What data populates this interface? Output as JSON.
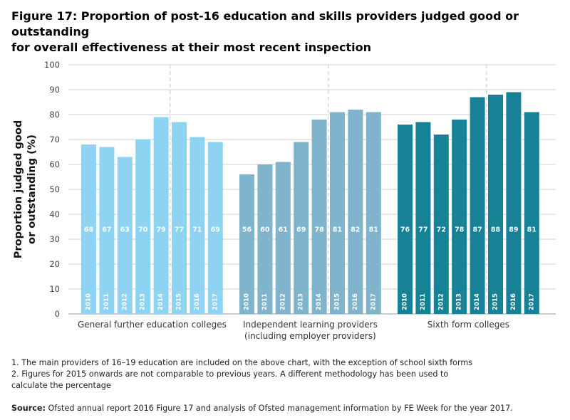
{
  "title_lines": [
    "Figure 17: Proportion of post-16 education and skills providers judged good or outstanding",
    "for overall effectiveness at their most recent inspection"
  ],
  "notes": [
    "1. The main providers of 16–19 education are included on the above chart, with the exception of school sixth forms",
    "2. Figures for 2015 onwards are not comparable to previous years. A different methodology has been used to",
    "calculate the percentage"
  ],
  "source": {
    "label": "Source:",
    "text": " Ofsted annual report 2016 Figure 17 and analysis of Ofsted management information by FE Week for the year 2017."
  },
  "chart_data": {
    "type": "bar",
    "ylabel_lines": [
      "Proportion judged good",
      "or outstanding (%)"
    ],
    "ylim": [
      0,
      100
    ],
    "yticks": [
      0,
      10,
      20,
      30,
      40,
      50,
      60,
      70,
      80,
      90,
      100
    ],
    "grid": true,
    "groups": [
      {
        "label_lines": [
          "General further education colleges"
        ],
        "color": "#8ed3f1",
        "categories": [
          "2010",
          "2011",
          "2012",
          "2013",
          "2014",
          "2015",
          "2016",
          "2017"
        ],
        "values": [
          68,
          67,
          63,
          70,
          79,
          77,
          71,
          69
        ]
      },
      {
        "label_lines": [
          "Independent learning providers",
          "(including employer providers)"
        ],
        "color": "#7fb4cc",
        "categories": [
          "2010",
          "2011",
          "2012",
          "2013",
          "2014",
          "2015",
          "2016",
          "2017"
        ],
        "values": [
          56,
          60,
          61,
          69,
          78,
          81,
          82,
          81
        ]
      },
      {
        "label_lines": [
          "Sixth form colleges"
        ],
        "color": "#178196",
        "categories": [
          "2010",
          "2011",
          "2012",
          "2013",
          "2014",
          "2015",
          "2016",
          "2017"
        ],
        "values": [
          76,
          77,
          72,
          78,
          87,
          88,
          89,
          81
        ]
      }
    ],
    "methodology_break_before": "2015"
  }
}
